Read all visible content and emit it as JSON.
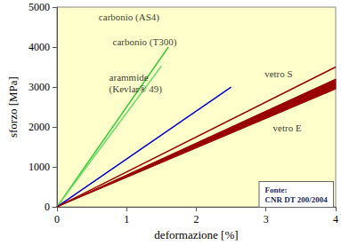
{
  "chart_data": {
    "type": "line",
    "xlabel": "deformazione [%]",
    "ylabel": "sforzo [MPa]",
    "xlim": [
      0,
      4
    ],
    "xticks": [
      0,
      1,
      2,
      3,
      4
    ],
    "ylim": [
      0,
      5000
    ],
    "yticks": [
      0,
      1000,
      2000,
      3000,
      4000,
      5000
    ],
    "grid": false,
    "series": [
      {
        "name": "carbonio (AS4)",
        "color": "#33cc33",
        "x": [
          0,
          1.6
        ],
        "values": [
          0,
          4000
        ]
      },
      {
        "name": "carbonio (T300)",
        "color": "#66dd66",
        "x": [
          0,
          1.5
        ],
        "values": [
          0,
          3530
        ]
      },
      {
        "name": "arammide\n(Kevlar® 49)",
        "color": "#0000cc",
        "x": [
          0,
          2.5
        ],
        "values": [
          0,
          3000
        ]
      },
      {
        "name": "vetro S",
        "color": "#990000",
        "x": [
          0,
          4
        ],
        "values": [
          0,
          3500
        ]
      },
      {
        "name": "vetro E",
        "color": "#990000",
        "type": "band",
        "x": [
          0,
          4
        ],
        "values": [
          0,
          3200
        ],
        "lower": [
          0,
          2950
        ]
      }
    ],
    "annotations": [
      {
        "text": "carbonio (AS4)",
        "x": 0.6,
        "y": 4750
      },
      {
        "text": "carbonio (T300)",
        "x": 0.8,
        "y": 4130
      },
      {
        "text": "arammide\n(Kevlar® 49)",
        "x": 0.75,
        "y": 3100
      },
      {
        "text": "vetro S",
        "x": 2.98,
        "y": 3330
      },
      {
        "text": "vetro E",
        "x": 3.1,
        "y": 1980
      }
    ],
    "source": [
      "Fonte:",
      "CNR DT 200/2004"
    ]
  }
}
